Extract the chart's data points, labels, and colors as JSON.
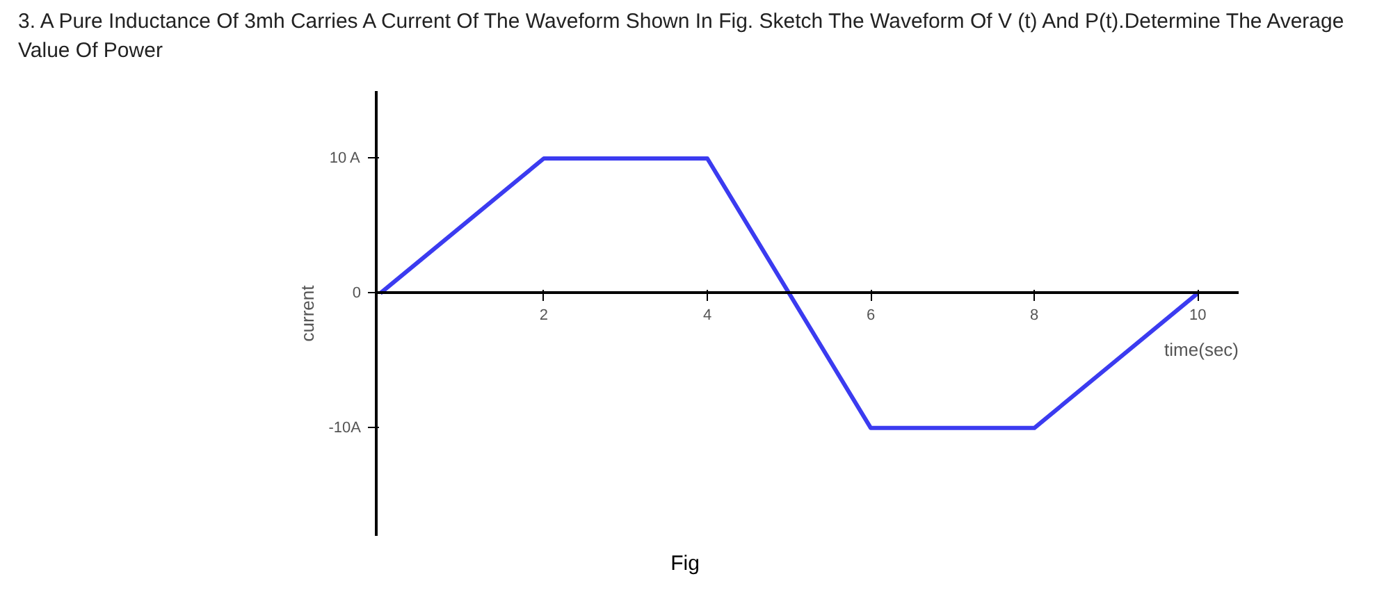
{
  "chart_data": {
    "type": "line",
    "title": "3. A Pure Inductance Of 3mh Carries A Current Of The Waveform Shown In Fig. Sketch The Waveform Of V (t) And P(t).Determine The Average Value Of Power",
    "xlabel": "time(sec)",
    "ylabel": "current",
    "x": [
      0,
      2,
      4,
      6,
      8,
      10
    ],
    "series": [
      {
        "color": "#3b3bf0",
        "values": [
          0,
          10,
          10,
          -10,
          -10,
          0
        ]
      }
    ],
    "xlim": [
      -0.05,
      10.5
    ],
    "ylim": [
      -18,
      15
    ],
    "xticks": [
      2,
      4,
      6,
      8,
      10
    ],
    "yticks": [
      {
        "value": 10,
        "label": "10 A"
      },
      {
        "value": 0,
        "label": "0"
      },
      {
        "value": -10,
        "label": "-10A"
      }
    ],
    "annotations": [
      "Fig"
    ],
    "grid": false,
    "marker": "none",
    "line_style": "solid"
  }
}
